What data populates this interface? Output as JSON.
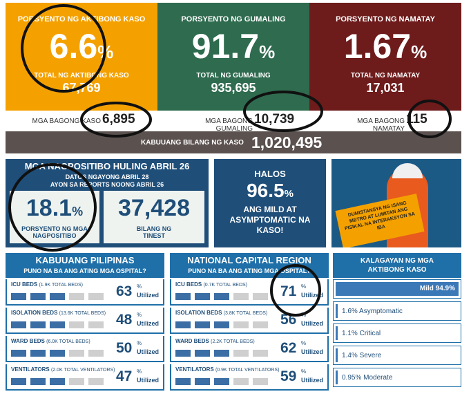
{
  "summary": [
    {
      "label": "PORSYENTO NG AKTIBONG KASO",
      "value": "6.6",
      "unit": "%",
      "sub_label": "TOTAL NG AKTIBONG KASO",
      "sub_value": "67,769",
      "new_label": "MGA BAGONG KASO",
      "new_value": "6,895",
      "color": "#f4a100"
    },
    {
      "label": "PORSYENTO NG GUMALING",
      "value": "91.7",
      "unit": "%",
      "sub_label": "TOTAL NG GUMALING",
      "sub_value": "935,695",
      "new_label": "MGA BAGONG GUMALING",
      "new_value": "10,739",
      "color": "#2f6b4f"
    },
    {
      "label": "PORSYENTO NG NAMATAY",
      "value": "1.67",
      "unit": "%",
      "sub_label": "TOTAL NG NAMATAY",
      "sub_value": "17,031",
      "new_label": "MGA BAGONG NAMATAY",
      "new_value": "115",
      "color": "#6e1b1b"
    }
  ],
  "total": {
    "label": "KABUUANG BILANG NG KASO",
    "value": "1,020,495"
  },
  "positivity": {
    "title": "MGA NAGPOSITIBO HULING ABRIL 26",
    "line1": "DATOS NGAYONG ABRIL 28",
    "line2": "AYON SA REPORTS NOONG ABRIL 26",
    "rate": "18.1",
    "unit": "%",
    "rate_label": "PORSYENTO NG MGA NAGPOSITIBO",
    "tested": "37,428",
    "tested_label": "BILANG NG TINEST"
  },
  "mild": {
    "top": "HALOS",
    "value": "96.5",
    "unit": "%",
    "text": "ANG MILD AT ASYMPTOMATIC NA KASO!"
  },
  "poster": {
    "text": "DUMISTANSYA NG ISANG METRO AT LUMITAN ANG PISIKAL NA INTERAKSYON SA IBA"
  },
  "hospitals": [
    {
      "title": "KABUUANG PILIPINAS",
      "subtitle": "PUNO NA BA ANG ATING MGA OSPITAL?",
      "rows": [
        {
          "name": "ICU BEDS",
          "total": "(1.9K TOTAL BEDS)",
          "value": "63",
          "unit": "%",
          "status": "Utilized"
        },
        {
          "name": "ISOLATION BEDS",
          "total": "(13.6K TOTAL BEDS)",
          "value": "48",
          "unit": "%",
          "status": "Utilized"
        },
        {
          "name": "WARD BEDS",
          "total": "(6.0K TOTAL BEDS)",
          "value": "50",
          "unit": "%",
          "status": "Utilized"
        },
        {
          "name": "VENTILATORS",
          "total": "(2.0K TOTAL VENTILATORS)",
          "value": "47",
          "unit": "%",
          "status": "Utilized"
        }
      ]
    },
    {
      "title": "NATIONAL CAPITAL REGION",
      "subtitle": "PUNO NA BA ANG ATING MGA OSPITAL?",
      "rows": [
        {
          "name": "ICU BEDS",
          "total": "(0.7K TOTAL BEDS)",
          "value": "71",
          "unit": "%",
          "status": "Utilized"
        },
        {
          "name": "ISOLATION BEDS",
          "total": "(3.8K TOTAL BEDS)",
          "value": "56",
          "unit": "%",
          "status": "Utilized"
        },
        {
          "name": "WARD BEDS",
          "total": "(2.2K TOTAL BEDS)",
          "value": "62",
          "unit": "%",
          "status": "Utilized"
        },
        {
          "name": "VENTILATORS",
          "total": "(0.9K TOTAL VENTILATORS)",
          "value": "59",
          "unit": "%",
          "status": "Utilized"
        }
      ]
    }
  ],
  "status": {
    "title": "KALAGAYAN NG MGA AKTIBONG KASO",
    "rows": [
      "Mild 94.9%",
      "1.6% Asymptomatic",
      "1.1% Critical",
      "1.4% Severe",
      "0.95% Moderate"
    ]
  }
}
